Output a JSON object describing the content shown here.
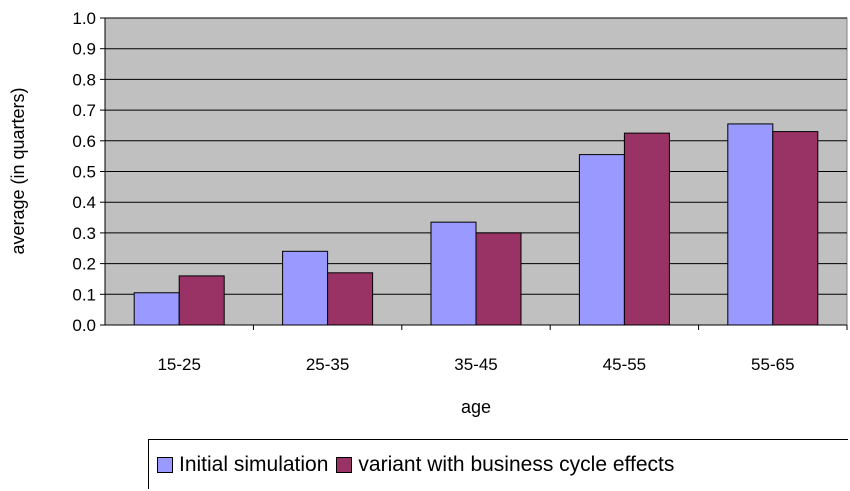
{
  "chart_data": {
    "type": "bar",
    "title": "",
    "xlabel": "age",
    "ylabel": "average (in quarters)",
    "categories": [
      "15-25",
      "25-35",
      "35-45",
      "45-55",
      "55-65"
    ],
    "ylim": [
      0,
      1.0
    ],
    "yticks": [
      "0.0",
      "0.1",
      "0.2",
      "0.3",
      "0.4",
      "0.5",
      "0.6",
      "0.7",
      "0.8",
      "0.9",
      "1.0"
    ],
    "grid": true,
    "legend_position": "bottom",
    "plot_background": "#c0c0c0",
    "series": [
      {
        "name": "Initial simulation",
        "color": "#9999ff",
        "values": [
          0.105,
          0.24,
          0.335,
          0.555,
          0.655
        ]
      },
      {
        "name": "variant with business cycle effects",
        "color": "#993366",
        "values": [
          0.16,
          0.17,
          0.3,
          0.625,
          0.63
        ]
      }
    ]
  }
}
